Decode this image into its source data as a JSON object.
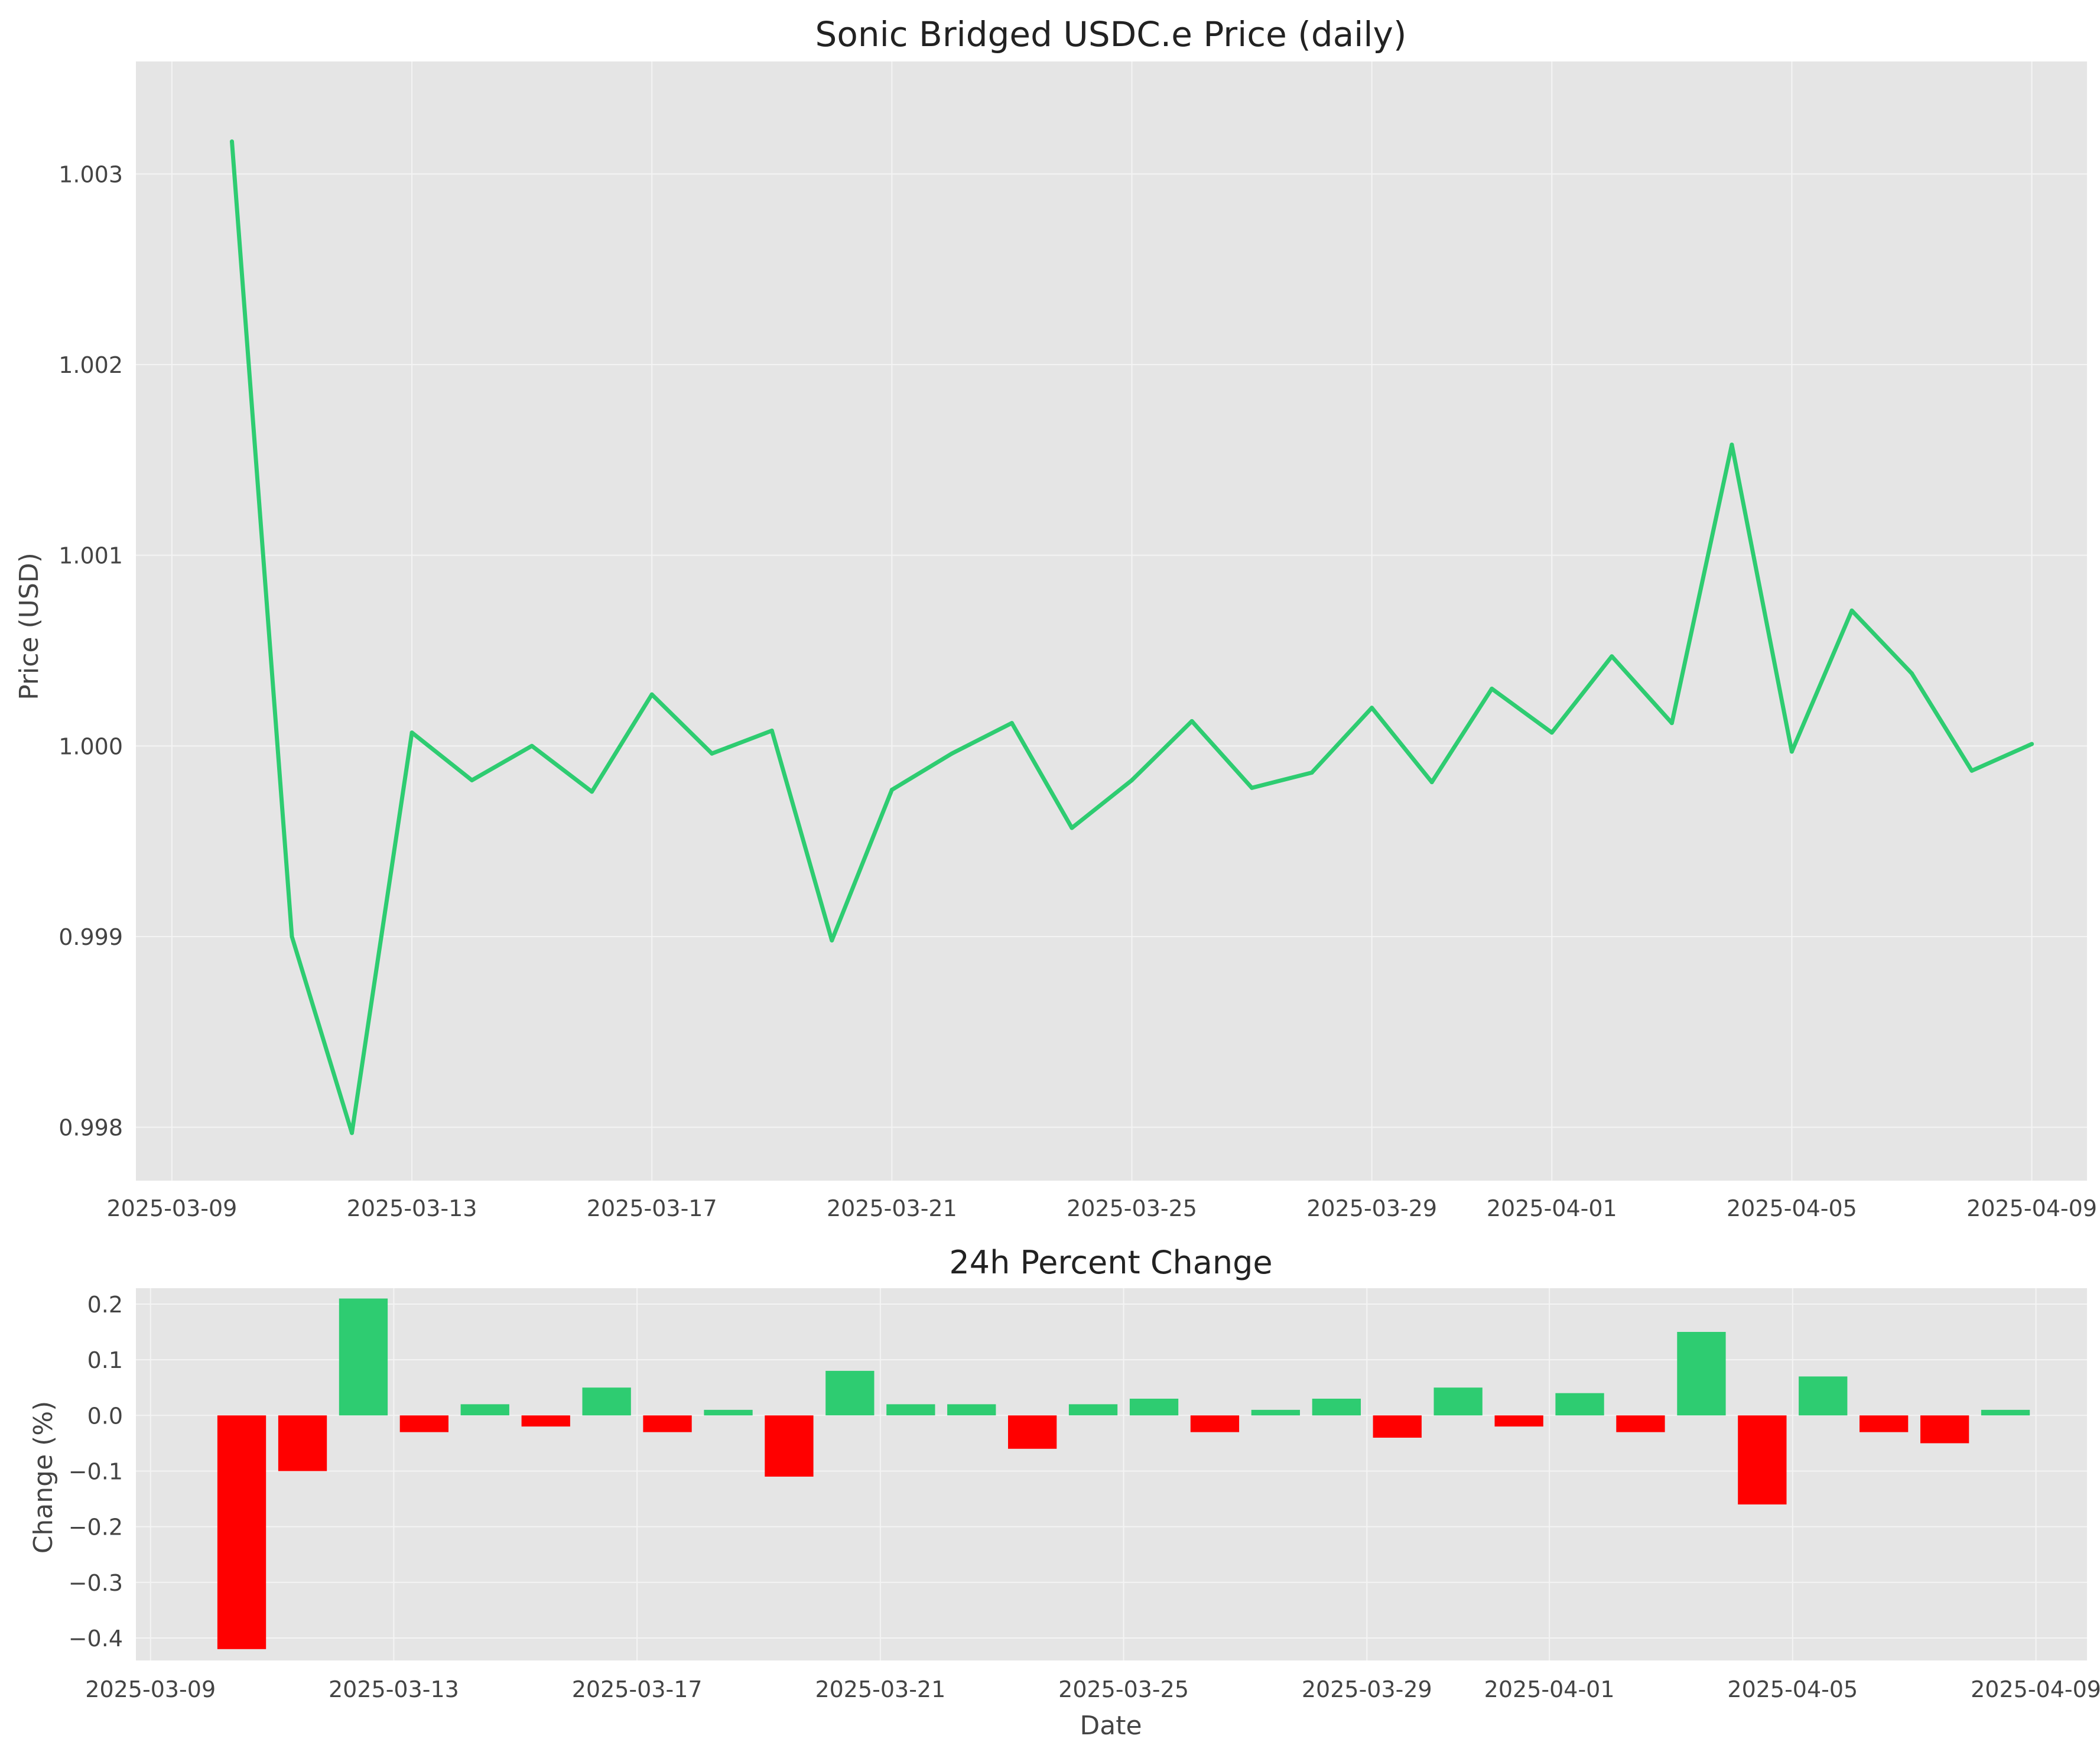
{
  "chart_data": [
    {
      "type": "line",
      "title": "Sonic Bridged USDC.e Price (daily)",
      "xlabel": "",
      "ylabel": "Price (USD)",
      "x_ticks": [
        "2025-03-09",
        "2025-03-13",
        "2025-03-17",
        "2025-03-21",
        "2025-03-25",
        "2025-03-29",
        "2025-04-01",
        "2025-04-05",
        "2025-04-09"
      ],
      "y_ticks": [
        "0.998",
        "0.999",
        "1.000",
        "1.001",
        "1.002",
        "1.003"
      ],
      "ylim": [
        0.99772,
        1.00359
      ],
      "grid": true,
      "line_color": "#2ecc71",
      "series": [
        {
          "x": [
            "2025-03-10",
            "2025-03-11",
            "2025-03-12",
            "2025-03-13",
            "2025-03-14",
            "2025-03-15",
            "2025-03-16",
            "2025-03-17",
            "2025-03-18",
            "2025-03-19",
            "2025-03-20",
            "2025-03-21",
            "2025-03-22",
            "2025-03-23",
            "2025-03-24",
            "2025-03-25",
            "2025-03-26",
            "2025-03-27",
            "2025-03-28",
            "2025-03-29",
            "2025-03-30",
            "2025-03-31",
            "2025-04-01",
            "2025-04-02",
            "2025-04-03",
            "2025-04-04",
            "2025-04-05",
            "2025-04-06",
            "2025-04-07",
            "2025-04-08",
            "2025-04-09"
          ],
          "values": [
            1.00317,
            0.999,
            0.99797,
            1.00007,
            0.99982,
            1.0,
            0.99976,
            1.00027,
            0.99996,
            1.00008,
            0.99898,
            0.99977,
            0.99996,
            1.00012,
            0.99957,
            0.99982,
            1.00013,
            0.99978,
            0.99986,
            1.0002,
            0.99981,
            1.0003,
            1.00007,
            1.00047,
            1.00012,
            1.00158,
            0.99997,
            1.00071,
            1.00038,
            0.99987,
            1.00001
          ]
        }
      ]
    },
    {
      "type": "bar",
      "title": "24h Percent Change",
      "xlabel": "Date",
      "ylabel": "Change (%)",
      "x_ticks": [
        "2025-03-09",
        "2025-03-13",
        "2025-03-17",
        "2025-03-21",
        "2025-03-25",
        "2025-03-29",
        "2025-04-01",
        "2025-04-05",
        "2025-04-09"
      ],
      "y_ticks": [
        "−0.4",
        "−0.3",
        "−0.2",
        "−0.1",
        "0.0",
        "0.1",
        "0.2"
      ],
      "ylim": [
        -0.4404,
        0.2286
      ],
      "grid": true,
      "positive_color": "#2ecc71",
      "negative_color": "#ff0000",
      "series": [
        {
          "x": [
            "2025-03-11",
            "2025-03-12",
            "2025-03-13",
            "2025-03-14",
            "2025-03-15",
            "2025-03-16",
            "2025-03-17",
            "2025-03-18",
            "2025-03-19",
            "2025-03-20",
            "2025-03-21",
            "2025-03-22",
            "2025-03-23",
            "2025-03-24",
            "2025-03-25",
            "2025-03-26",
            "2025-03-27",
            "2025-03-28",
            "2025-03-29",
            "2025-03-30",
            "2025-03-31",
            "2025-04-01",
            "2025-04-02",
            "2025-04-03",
            "2025-04-04",
            "2025-04-05",
            "2025-04-06",
            "2025-04-07",
            "2025-04-08",
            "2025-04-09"
          ],
          "values": [
            -0.42,
            -0.1,
            0.21,
            -0.03,
            0.02,
            -0.02,
            0.05,
            -0.03,
            0.01,
            -0.11,
            0.08,
            0.02,
            0.02,
            -0.06,
            0.02,
            0.03,
            -0.03,
            0.01,
            0.03,
            -0.04,
            0.05,
            -0.02,
            0.04,
            -0.03,
            0.15,
            -0.16,
            0.07,
            -0.03,
            -0.05,
            0.01
          ]
        }
      ]
    }
  ]
}
